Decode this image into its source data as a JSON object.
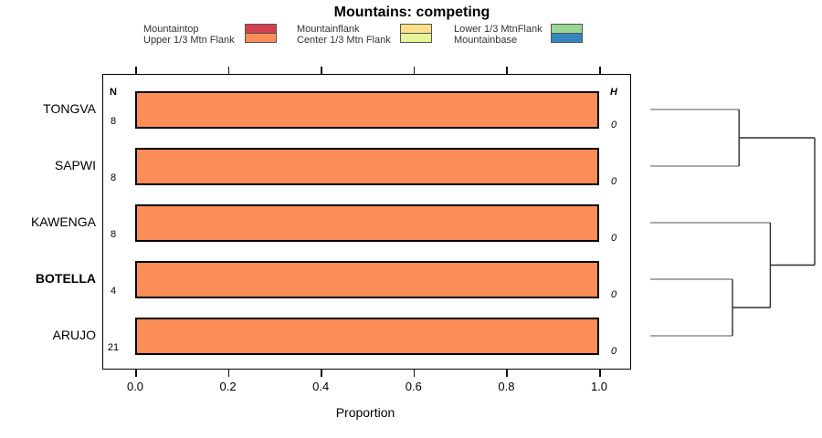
{
  "title": "Mountains: competing",
  "legend": {
    "items": [
      {
        "label": "Mountaintop",
        "color": "#D53E4F"
      },
      {
        "label": "Upper 1/3 Mtn Flank",
        "color": "#FC8D59"
      },
      {
        "label": "Mountainflank",
        "color": "#FEE08B"
      },
      {
        "label": "Center 1/3 Mtn Flank",
        "color": "#E6F598"
      },
      {
        "label": "Lower 1/3 MtnFlank",
        "color": "#99D594"
      },
      {
        "label": "Mountainbase",
        "color": "#3288BD"
      }
    ]
  },
  "chart_data": {
    "type": "bar",
    "orientation": "horizontal",
    "title": "Mountains: competing",
    "categories": [
      "TONGVA",
      "SAPWI",
      "KAWENGA",
      "BOTELLA",
      "ARUJO"
    ],
    "values": [
      1.0,
      1.0,
      1.0,
      1.0,
      1.0
    ],
    "bar_segment_label": "Upper 1/3 Mtn Flank",
    "bar_color": "#FC8D59",
    "bold_category": "BOTELLA",
    "n_column": {
      "header": "N",
      "values": [
        "8",
        "8",
        "8",
        "4",
        "21"
      ]
    },
    "h_column": {
      "header": "H",
      "values": [
        "0",
        "0",
        "0",
        "0",
        "0"
      ]
    },
    "xlabel": "Proportion",
    "x_ticks": [
      "0.0",
      "0.2",
      "0.4",
      "0.6",
      "0.8",
      "1.0"
    ],
    "xlim": [
      0,
      1
    ],
    "grid": false,
    "legend_position": "top",
    "dendrogram": {
      "leaves": [
        "TONGVA",
        "SAPWI",
        "KAWENGA",
        "BOTELLA",
        "ARUJO"
      ],
      "merges": [
        {
          "id": "A",
          "children": [
            "TONGVA",
            "SAPWI"
          ],
          "height": 0.54
        },
        {
          "id": "B",
          "children": [
            "BOTELLA",
            "ARUJO"
          ],
          "height": 0.5
        },
        {
          "id": "C",
          "children": [
            "KAWENGA",
            "B"
          ],
          "height": 0.73
        },
        {
          "id": "D",
          "children": [
            "A",
            "C"
          ],
          "height": 1.0
        }
      ]
    }
  }
}
